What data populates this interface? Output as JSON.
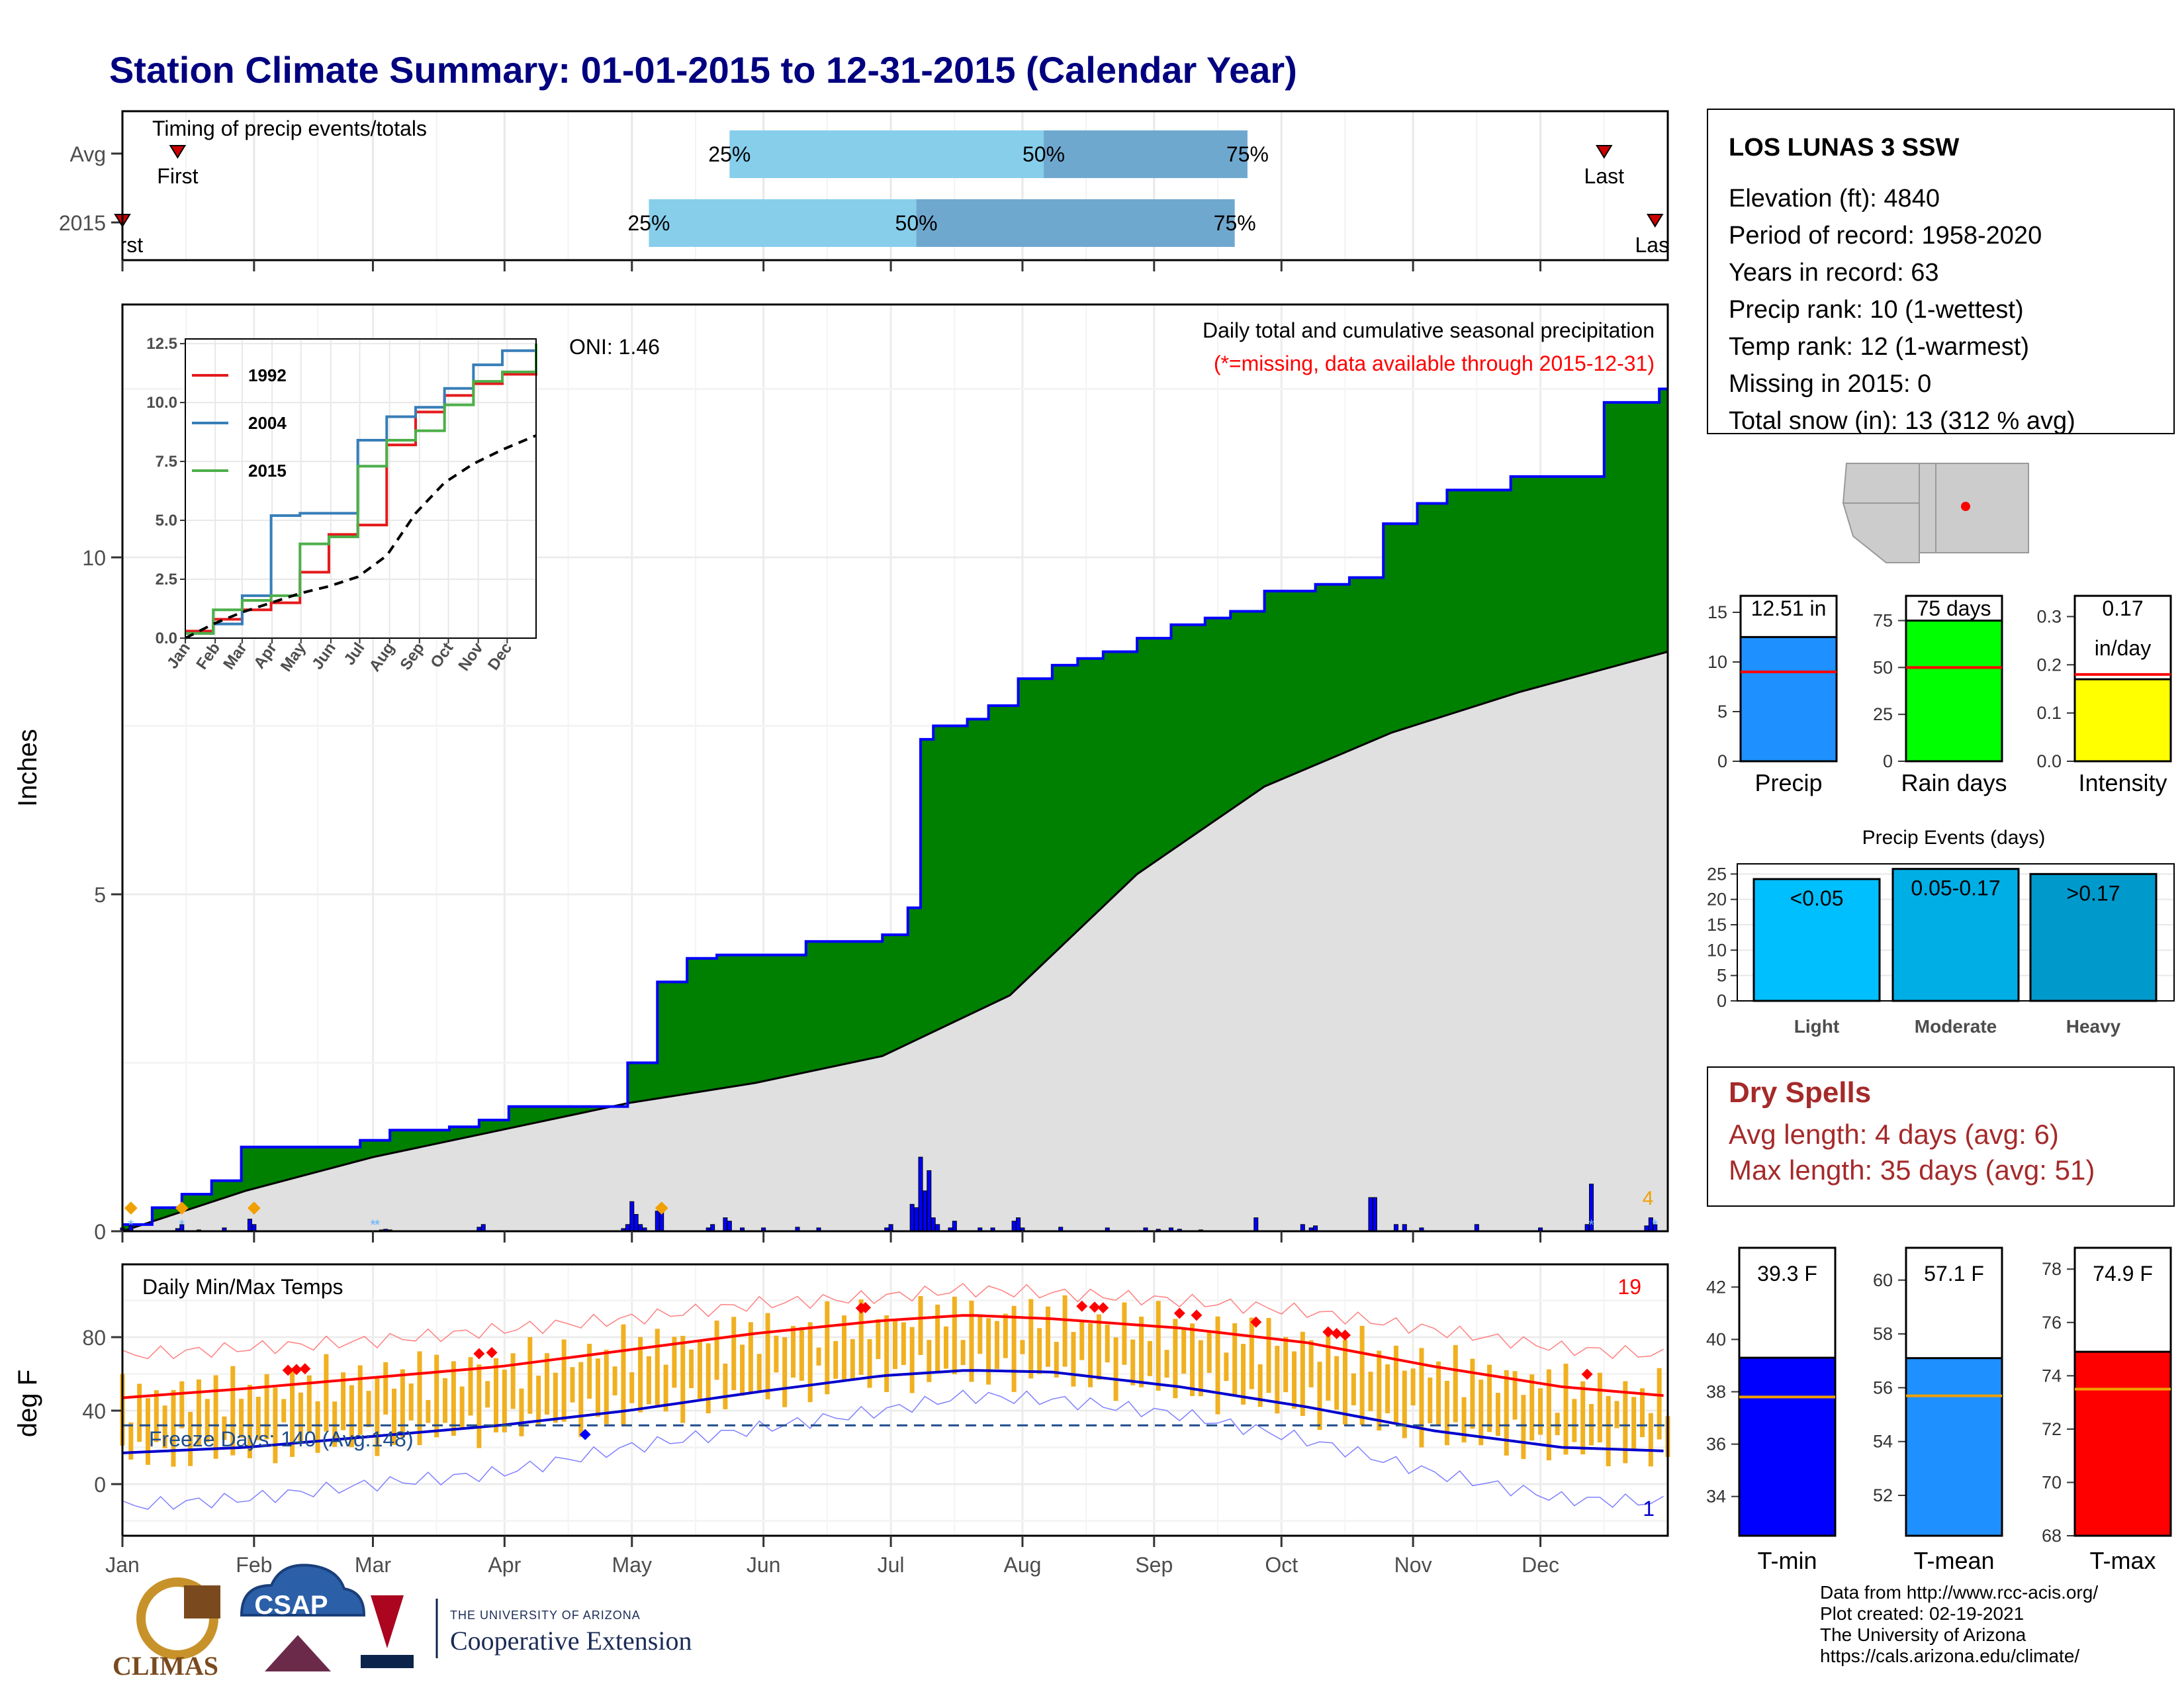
{
  "title": "Station Climate Summary: 01-01-2015 to 12-31-2015 (Calendar Year)",
  "colors": {
    "title": "#000080",
    "cumulative_fill": "#008000",
    "cumulative_line": "#0000ff",
    "average_fill": "#e0e0e0",
    "daily_bar": "#0000ff",
    "temp_bar": "#f0b020",
    "tmax_line": "#ff0000",
    "tmin_line": "#0000cc",
    "dry_spell_text": "#a52a2a",
    "missing_note": "#ff0000"
  },
  "timing_panel": {
    "title": "Timing of precip events/totals",
    "rows": [
      {
        "label": "Avg",
        "p25_label": "25%",
        "p50_label": "50%",
        "p75_label": "75%",
        "p25_doy": 144,
        "p50_doy": 218,
        "p75_doy": 266,
        "first_label": "First",
        "first_doy": 14,
        "last_label": "Last",
        "last_doy": 350
      },
      {
        "label": "2015",
        "p25_label": "25%",
        "p50_label": "50%",
        "p75_label": "75%",
        "p25_doy": 125,
        "p50_doy": 188,
        "p75_doy": 263,
        "first_label": "First",
        "first_doy": 1,
        "last_label": "Last",
        "last_doy": 362
      }
    ]
  },
  "precip_panel": {
    "ylabel": "Inches",
    "title": "Daily total and cumulative seasonal precipitation",
    "missing_note": "(*=missing, data available through 2015-12-31)",
    "oni": "ONI: 1.46",
    "count_label": "4",
    "yticks": [
      "0",
      "5",
      "10"
    ]
  },
  "inset": {
    "yticks": [
      "0.0",
      "2.5",
      "5.0",
      "7.5",
      "10.0",
      "12.5"
    ],
    "xticks": [
      "Jan",
      "Feb",
      "Mar",
      "Apr",
      "May",
      "Jun",
      "Jul",
      "Aug",
      "Sep",
      "Oct",
      "Nov",
      "Dec"
    ],
    "legend": [
      {
        "name": "1992",
        "color": "#e41a1c"
      },
      {
        "name": "2004",
        "color": "#377eb8"
      },
      {
        "name": "2015",
        "color": "#4daf4a"
      }
    ]
  },
  "temp_panel": {
    "ylabel": "deg F",
    "title": "Daily Min/Max Temps",
    "freeze_label": "Freeze Days: 140 (Avg:148)",
    "hot_count": "19",
    "cold_count": "1",
    "yticks": [
      "0",
      "40",
      "80"
    ]
  },
  "months": [
    "Jan",
    "Feb",
    "Mar",
    "Apr",
    "May",
    "Jun",
    "Jul",
    "Aug",
    "Sep",
    "Oct",
    "Nov",
    "Dec"
  ],
  "station": {
    "name": "LOS LUNAS 3 SSW",
    "lines": [
      "Elevation (ft): 4840",
      "Period of record: 1958-2020",
      "Years in record: 63",
      "Precip rank: 10 (1-wettest)",
      "Temp rank: 12 (1-warmest)",
      "Missing in 2015: 0",
      "Total snow (in): 13 (312 % avg)"
    ]
  },
  "precip_summary": [
    {
      "label": "Precip",
      "value_label": "12.51 in",
      "value": 12.51,
      "avg": 9.0,
      "ymax": 17,
      "yticks": [
        "0",
        "5",
        "10",
        "15"
      ],
      "tick_values": [
        0,
        5,
        10,
        15
      ],
      "color": "#1e90ff"
    },
    {
      "label": "Rain days",
      "value_label": "75 days",
      "value": 75,
      "avg": 50,
      "ymax": 90,
      "yticks": [
        "0",
        "25",
        "50",
        "75"
      ],
      "tick_values": [
        0,
        25,
        50,
        75
      ],
      "color": "#00ff00"
    },
    {
      "label": "Intensity",
      "value_label": "0.17",
      "value_label2": "in/day",
      "value": 0.17,
      "avg": 0.18,
      "ymax": 0.35,
      "yticks": [
        "0.0",
        "0.1",
        "0.2",
        "0.3"
      ],
      "tick_values": [
        0,
        0.1,
        0.2,
        0.3
      ],
      "color": "#ffff00"
    }
  ],
  "precip_events": {
    "title": "Precip Events (days)",
    "yticks": [
      "0",
      "5",
      "10",
      "15",
      "20",
      "25"
    ],
    "bars": [
      {
        "label": "Light",
        "range": "<0.05",
        "value": 24,
        "color": "#00bfff"
      },
      {
        "label": "Moderate",
        "range": "0.05-0.17",
        "value": 26,
        "color": "#00aee6"
      },
      {
        "label": "Heavy",
        "range": ">0.17",
        "value": 25,
        "color": "#0099cc"
      }
    ]
  },
  "dry_spells": {
    "title": "Dry Spells",
    "avg_line": "Avg length: 4 days (avg: 6)",
    "max_line": "Max length: 35 days (avg: 51)"
  },
  "temp_summary": [
    {
      "label": "T-min",
      "value_label": "39.3 F",
      "value": 39.3,
      "avg": 37.8,
      "ymin": 32.5,
      "ymax": 43.5,
      "yticks": [
        "34",
        "36",
        "38",
        "40",
        "42"
      ],
      "tick_values": [
        34,
        36,
        38,
        40,
        42
      ],
      "color": "#0000ff"
    },
    {
      "label": "T-mean",
      "value_label": "57.1 F",
      "value": 57.1,
      "avg": 55.7,
      "ymin": 50.5,
      "ymax": 61.2,
      "yticks": [
        "52",
        "54",
        "56",
        "58",
        "60"
      ],
      "tick_values": [
        52,
        54,
        56,
        58,
        60
      ],
      "color": "#1e90ff"
    },
    {
      "label": "T-max",
      "value_label": "74.9 F",
      "value": 74.9,
      "avg": 73.5,
      "ymin": 68,
      "ymax": 78.8,
      "yticks": [
        "68",
        "70",
        "72",
        "74",
        "76",
        "78"
      ],
      "tick_values": [
        68,
        70,
        72,
        74,
        76,
        78
      ],
      "color": "#ff0000"
    }
  ],
  "footer": {
    "lines": [
      "Data from http://www.rcc-acis.org/",
      "Plot created: 02-19-2021",
      "The University of Arizona",
      "https://cals.arizona.edu/climate/"
    ]
  },
  "logos": {
    "climas": "CLIMAS",
    "csap": "CSAP",
    "ua_line1": "THE UNIVERSITY OF ARIZONA",
    "ua_line2": "Cooperative Extension"
  },
  "chart_data": [
    {
      "type": "area",
      "title": "Daily total and cumulative seasonal precipitation",
      "ylabel": "Inches",
      "ylim": [
        0,
        12.5
      ],
      "x_unit": "day of year 2015",
      "series": [
        {
          "name": "",
          "x": [
            1,
            8,
            15,
            22,
            29,
            36,
            43,
            50,
            57,
            64,
            71,
            78,
            85,
            92,
            99,
            106,
            113,
            116,
            120,
            127,
            134,
            141,
            148,
            155,
            162,
            169,
            176,
            180,
            186,
            189,
            192,
            200,
            205,
            212,
            220,
            226,
            232,
            240,
            248,
            256,
            262,
            268,
            270,
            282,
            290,
            298,
            306,
            313,
            320,
            328,
            336,
            350,
            352,
            360,
            363,
            365
          ],
          "values": [
            0.1,
            0.35,
            0.55,
            0.75,
            1.25,
            1.25,
            1.25,
            1.25,
            1.35,
            1.5,
            1.5,
            1.55,
            1.65,
            1.85,
            1.85,
            1.85,
            1.85,
            1.85,
            2.5,
            3.7,
            4.05,
            4.1,
            4.1,
            4.1,
            4.3,
            4.3,
            4.3,
            4.4,
            4.8,
            7.3,
            7.5,
            7.6,
            7.8,
            8.2,
            8.4,
            8.5,
            8.6,
            8.8,
            9.0,
            9.1,
            9.2,
            9.2,
            9.5,
            9.6,
            9.7,
            10.5,
            10.8,
            11.0,
            11.0,
            11.2,
            11.2,
            12.3,
            12.3,
            12.3,
            12.5,
            12.5
          ]
        },
        {
          "name": "",
          "x": [
            1,
            30,
            60,
            90,
            120,
            150,
            180,
            210,
            240,
            270,
            300,
            330,
            365
          ],
          "values": [
            0.0,
            0.6,
            1.1,
            1.5,
            1.9,
            2.2,
            2.6,
            3.5,
            5.3,
            6.6,
            7.4,
            8.0,
            8.6
          ]
        }
      ]
    },
    {
      "type": "bar",
      "title": "Daily precipitation (inches)",
      "x": [
        1,
        3,
        14,
        15,
        19,
        25,
        31,
        32,
        62,
        63,
        64,
        85,
        86,
        119,
        120,
        121,
        122,
        123,
        124,
        127,
        128,
        139,
        140,
        143,
        144,
        147,
        152,
        160,
        165,
        181,
        182,
        187,
        188,
        189,
        190,
        191,
        192,
        193,
        196,
        197,
        203,
        206,
        211,
        212,
        213,
        222,
        233,
        242,
        245,
        248,
        250,
        255,
        268,
        279,
        281,
        282,
        295,
        296,
        301,
        303,
        307,
        320,
        335,
        346,
        347,
        360,
        361,
        362
      ],
      "values": [
        0.05,
        0.08,
        0.04,
        0.1,
        0.02,
        0.05,
        0.18,
        0.1,
        0.02,
        0.03,
        0.02,
        0.06,
        0.1,
        0.04,
        0.1,
        0.44,
        0.25,
        0.1,
        0.05,
        0.3,
        0.35,
        0.05,
        0.1,
        0.2,
        0.15,
        0.05,
        0.05,
        0.06,
        0.05,
        0.05,
        0.1,
        0.4,
        0.35,
        1.1,
        0.6,
        0.9,
        0.2,
        0.1,
        0.05,
        0.15,
        0.05,
        0.05,
        0.15,
        0.2,
        0.05,
        0.06,
        0.05,
        0.05,
        0.03,
        0.05,
        0.03,
        0.02,
        0.2,
        0.1,
        0.05,
        0.08,
        0.5,
        0.5,
        0.1,
        0.1,
        0.05,
        0.1,
        0.05,
        0.1,
        0.7,
        0.08,
        0.2,
        0.1
      ]
    },
    {
      "type": "line",
      "title": "Cumulative precipitation comparison (inset)",
      "xlabel": "",
      "ylim": [
        0,
        12.5
      ],
      "x": [
        1,
        30,
        60,
        90,
        120,
        150,
        180,
        210,
        240,
        270,
        300,
        330,
        365
      ],
      "series": [
        {
          "name": "1992",
          "values": [
            0.3,
            0.8,
            1.2,
            1.5,
            2.8,
            4.4,
            4.8,
            8.2,
            9.6,
            10.3,
            10.8,
            11.2,
            11.6
          ]
        },
        {
          "name": "2004",
          "values": [
            0.2,
            0.6,
            1.8,
            5.2,
            5.3,
            5.3,
            8.4,
            9.4,
            9.8,
            10.6,
            11.6,
            12.2,
            12.5
          ]
        },
        {
          "name": "2015",
          "values": [
            0.2,
            1.2,
            1.6,
            1.8,
            4.0,
            4.3,
            7.3,
            8.4,
            8.8,
            9.9,
            10.9,
            11.3,
            12.5
          ]
        },
        {
          "name": "",
          "values": [
            0.0,
            0.6,
            1.1,
            1.5,
            1.9,
            2.2,
            2.6,
            3.5,
            5.3,
            6.6,
            7.4,
            8.0,
            8.6
          ]
        }
      ]
    },
    {
      "type": "line",
      "title": "Daily Min/Max Temps",
      "ylabel": "deg F",
      "ylim": [
        -25,
        110
      ],
      "x": [
        1,
        30,
        60,
        90,
        120,
        150,
        180,
        200,
        220,
        250,
        280,
        310,
        340,
        365
      ],
      "series": [
        {
          "name": "",
          "values": [
            47,
            52,
            58,
            64,
            73,
            82,
            89,
            92,
            90,
            85,
            77,
            64,
            53,
            48
          ]
        },
        {
          "name": "",
          "values": [
            17,
            20,
            26,
            32,
            40,
            50,
            59,
            62,
            61,
            53,
            42,
            29,
            20,
            18
          ]
        },
        {
          "name": "",
          "values": [
            70,
            74,
            78,
            84,
            90,
            98,
            102,
            106,
            104,
            100,
            94,
            84,
            74,
            70
          ]
        },
        {
          "name": "",
          "values": [
            -12,
            -8,
            0,
            6,
            20,
            30,
            40,
            48,
            46,
            38,
            24,
            6,
            -8,
            -10
          ]
        }
      ]
    }
  ]
}
